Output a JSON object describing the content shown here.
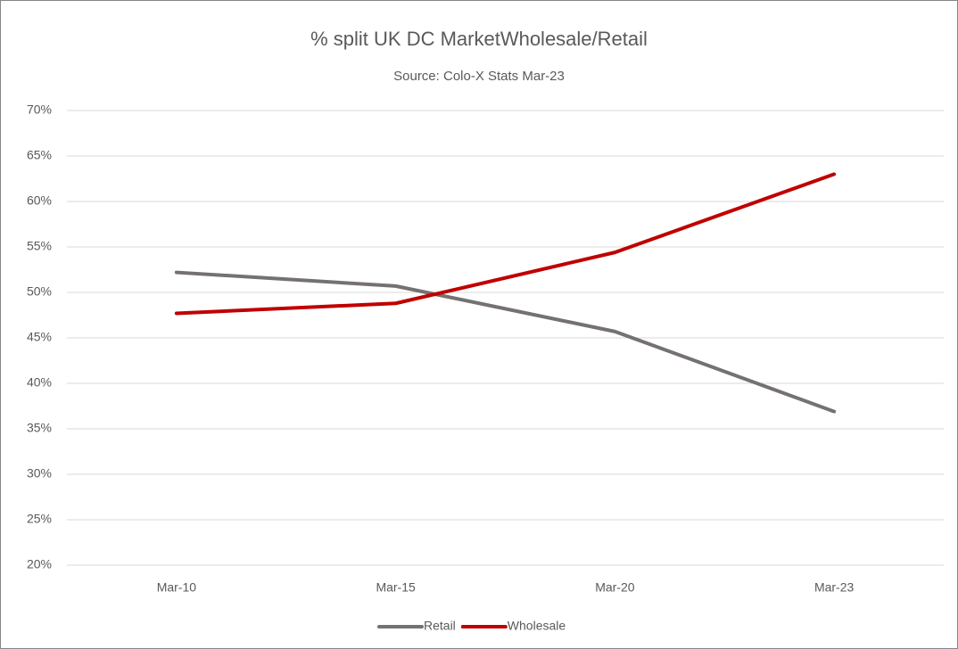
{
  "chart_data": {
    "type": "line",
    "title": "% split UK DC MarketWholesale/Retail",
    "subtitle": "Source:  Colo-X Stats Mar-23",
    "categories": [
      "Mar-10",
      "Mar-15",
      "Mar-20",
      "Mar-23"
    ],
    "series": [
      {
        "name": "Retail",
        "color": "#767171",
        "values": [
          52.2,
          50.7,
          45.7,
          36.9
        ]
      },
      {
        "name": "Wholesale",
        "color": "#c00000",
        "values": [
          47.7,
          48.8,
          54.4,
          63.0
        ]
      }
    ],
    "ylim": [
      20,
      70
    ],
    "yticks": [
      {
        "value": 20,
        "label": "20%"
      },
      {
        "value": 25,
        "label": "25%"
      },
      {
        "value": 30,
        "label": "30%"
      },
      {
        "value": 35,
        "label": "35%"
      },
      {
        "value": 40,
        "label": "40%"
      },
      {
        "value": 45,
        "label": "45%"
      },
      {
        "value": 50,
        "label": "50%"
      },
      {
        "value": 55,
        "label": "55%"
      },
      {
        "value": 60,
        "label": "60%"
      },
      {
        "value": 65,
        "label": "65%"
      },
      {
        "value": 70,
        "label": "70%"
      }
    ],
    "grid": true,
    "legend": "bottom"
  }
}
